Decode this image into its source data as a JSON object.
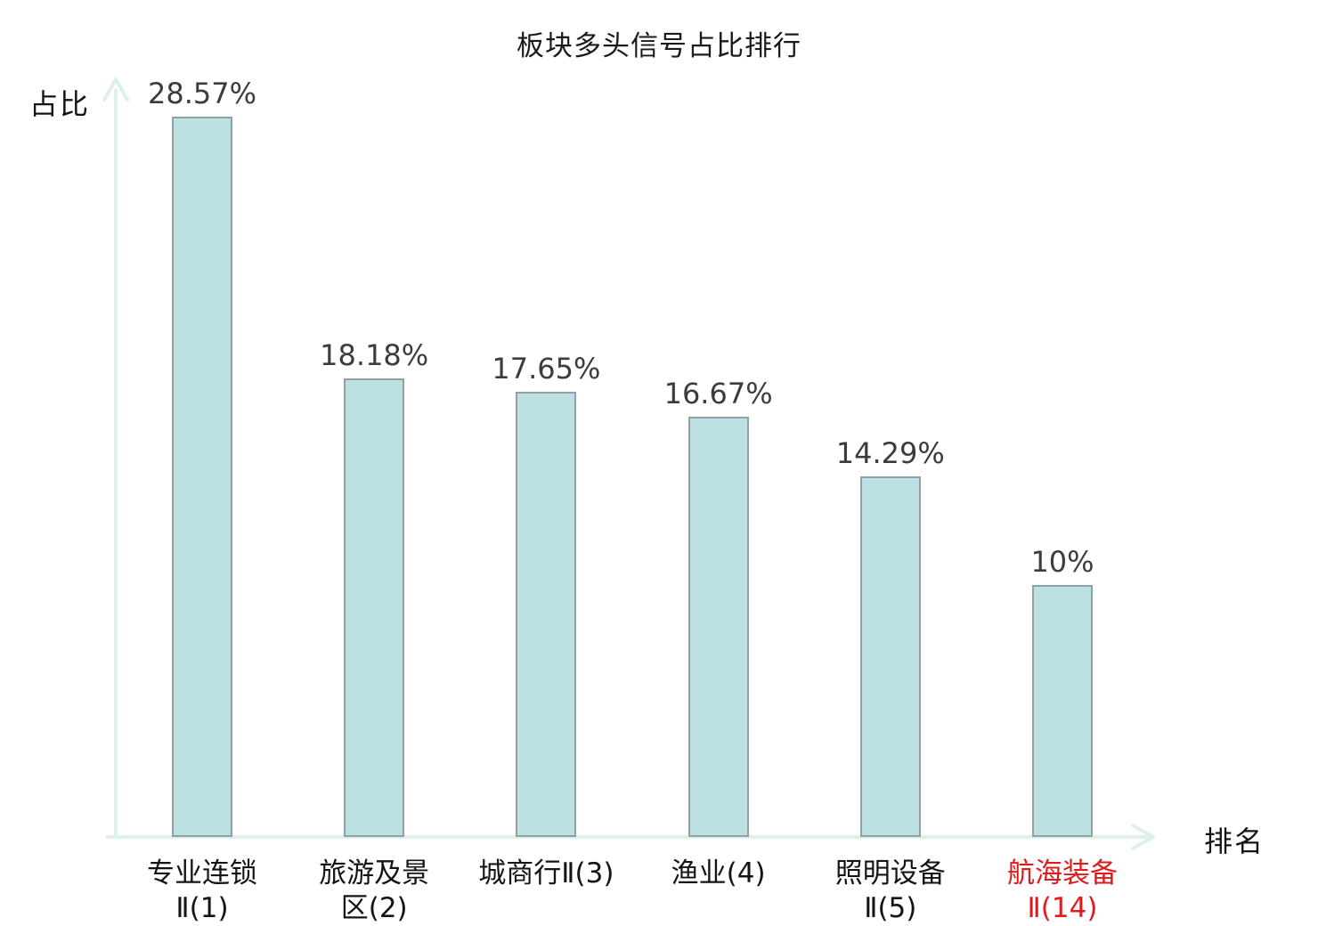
{
  "chart_data": {
    "type": "bar",
    "title": "板块多头信号占比排行",
    "xlabel": "排名",
    "ylabel": "占比",
    "categories": [
      {
        "label": "专业连锁Ⅱ(1)",
        "lines": [
          "专业连锁",
          "Ⅱ(1)"
        ],
        "highlight": false
      },
      {
        "label": "旅游及景区(2)",
        "lines": [
          "旅游及景",
          "区(2)"
        ],
        "highlight": false
      },
      {
        "label": "城商行Ⅱ(3)",
        "lines": [
          "城商行Ⅱ(3)"
        ],
        "highlight": false
      },
      {
        "label": "渔业(4)",
        "lines": [
          "渔业(4)"
        ],
        "highlight": false
      },
      {
        "label": "照明设备Ⅱ(5)",
        "lines": [
          "照明设备",
          "Ⅱ(5)"
        ],
        "highlight": false
      },
      {
        "label": "航海装备Ⅱ(14)",
        "lines": [
          "航海装备",
          "Ⅱ(14)"
        ],
        "highlight": true
      }
    ],
    "values": [
      28.57,
      18.18,
      17.65,
      16.67,
      14.29,
      10
    ],
    "value_labels": [
      "28.57%",
      "18.18%",
      "17.65%",
      "16.67%",
      "14.29%",
      "10%"
    ],
    "ylim": [
      0,
      30
    ],
    "grid": false,
    "legend": "none",
    "axis_arrows": true
  },
  "colors": {
    "background": "#ffffff",
    "bar_fill": "#bcdfe2",
    "bar_border": "#8ea2a5",
    "axis": "#ddf0ec",
    "title": "#1a1a1a",
    "value_label": "#3c3c3c",
    "category_label": "#141414",
    "highlight_label": "#e01b1b"
  }
}
